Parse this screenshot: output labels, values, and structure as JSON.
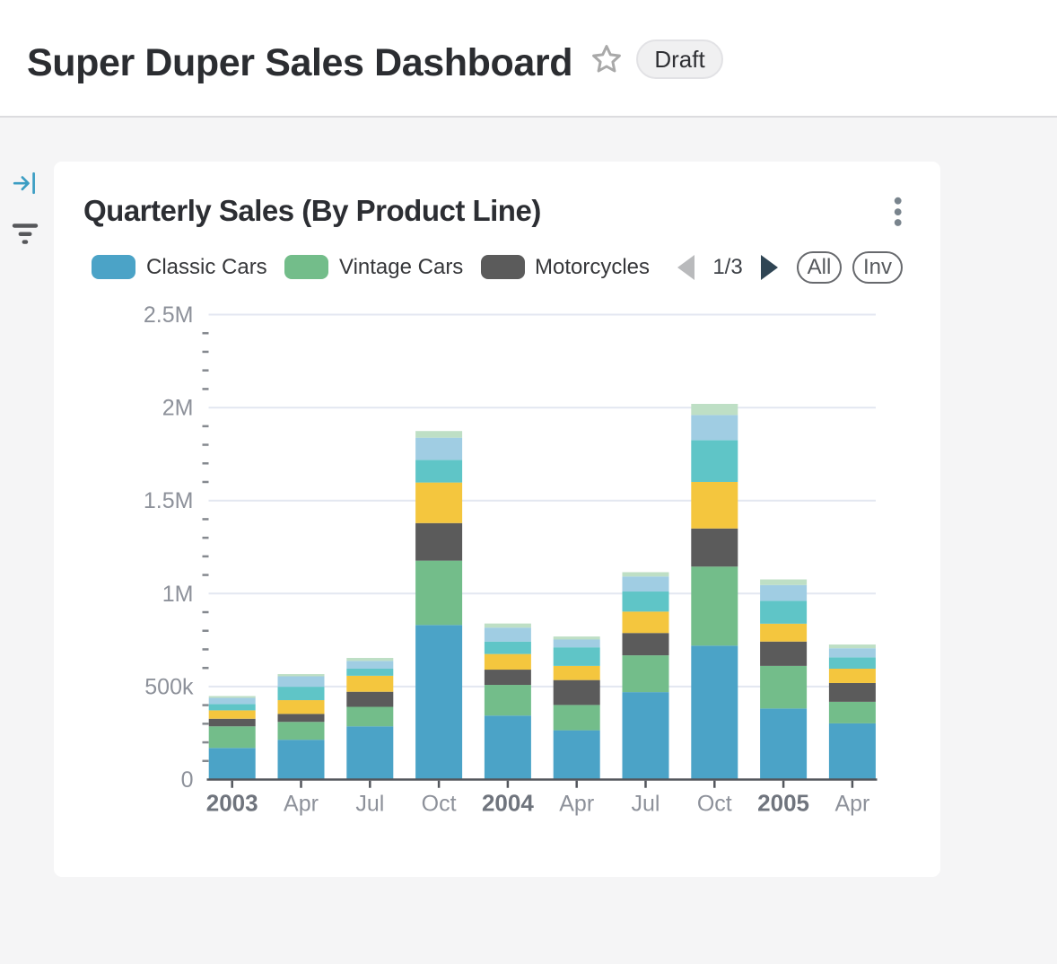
{
  "header": {
    "title": "Super Duper Sales Dashboard",
    "status_badge": "Draft"
  },
  "sidebar": {
    "icons": [
      "collapse-panel-arrow",
      "filter"
    ]
  },
  "card": {
    "title": "Quarterly Sales (By Product Line)",
    "menu_icon": "kebab-vertical-dots",
    "legend": {
      "visible_items": [
        {
          "label": "Classic Cars",
          "color": "#4ba3c7"
        },
        {
          "label": "Vintage Cars",
          "color": "#73bd8a"
        },
        {
          "label": "Motorcycles",
          "color": "#5b5b5b"
        }
      ],
      "page_indicator": "1/3",
      "select_all_label": "All",
      "invert_selection_label": "Inv"
    }
  },
  "colors": {
    "accent_blue": "#3b9dc3",
    "grid_line": "#e3e7f1",
    "axis_line": "#53565c",
    "minor_tick": "#85898f",
    "axis_label": "#8d919a",
    "year_label": "#6f747d",
    "pager_prev": "#b9babc",
    "pager_next": "#2f4554",
    "kebab_dot": "#79848d",
    "star": "#a9a9a9",
    "filter_icon": "#56575a"
  },
  "chart_data": {
    "type": "bar",
    "stacked": true,
    "title": "Quarterly Sales (By Product Line)",
    "xlabel": "",
    "ylabel": "",
    "ylim": [
      0,
      2500000
    ],
    "grid": true,
    "legend_position": "top",
    "legend_note": "scrollable legend page 1/3 shows first 3 of 7 series",
    "categories": [
      "2003",
      "Apr",
      "Jul",
      "Oct",
      "2004",
      "Apr",
      "Jul",
      "Oct",
      "2005",
      "Apr"
    ],
    "series": [
      {
        "name": "Classic Cars",
        "color": "#4ba3c7",
        "values": [
          170000,
          214000,
          286000,
          831000,
          344000,
          265000,
          470000,
          720000,
          382000,
          302000
        ]
      },
      {
        "name": "Vintage Cars",
        "color": "#73bd8a",
        "values": [
          116000,
          96000,
          105000,
          346000,
          165000,
          136000,
          198000,
          425000,
          229000,
          116000
        ]
      },
      {
        "name": "Motorcycles",
        "color": "#5b5b5b",
        "values": [
          41000,
          43000,
          81000,
          202000,
          82000,
          134000,
          120000,
          205000,
          131000,
          101000
        ]
      },
      {
        "name": "unlabeled-series-4 (yellow)",
        "color": "#f4c63e",
        "values": [
          45000,
          74000,
          86000,
          218000,
          84000,
          76000,
          115000,
          250000,
          96000,
          77000
        ]
      },
      {
        "name": "unlabeled-series-5 (teal)",
        "color": "#5fc5c7",
        "values": [
          34000,
          72000,
          38000,
          122000,
          67000,
          100000,
          108000,
          225000,
          123000,
          61000
        ]
      },
      {
        "name": "unlabeled-series-6 (light blue)",
        "color": "#a0cde3",
        "values": [
          33000,
          56000,
          42000,
          119000,
          75000,
          42000,
          81000,
          135000,
          85000,
          49000
        ]
      },
      {
        "name": "unlabeled-series-7 (pale green)",
        "color": "#bedfc5",
        "values": [
          10000,
          12000,
          16000,
          36000,
          22000,
          16000,
          23000,
          60000,
          30000,
          20000
        ]
      }
    ],
    "y_ticks": [
      {
        "value": 0,
        "label": "0"
      },
      {
        "value": 500000,
        "label": "500k"
      },
      {
        "value": 1000000,
        "label": "1M"
      },
      {
        "value": 1500000,
        "label": "1.5M"
      },
      {
        "value": 2000000,
        "label": "2M"
      },
      {
        "value": 2500000,
        "label": "2.5M"
      }
    ],
    "y_minor_tick_step": 100000
  }
}
